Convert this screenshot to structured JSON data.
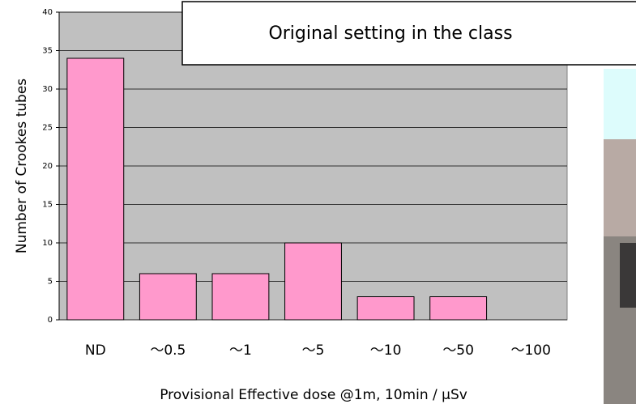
{
  "chart_data": {
    "type": "bar",
    "title": "Original setting in the class",
    "x_label": "Provisional Effective dose @1m, 10min / μSv",
    "y_label": "Number of Crookes tubes",
    "categories": [
      "ND",
      "～0.5",
      "～1",
      "～5",
      "～10",
      "～50",
      "～100"
    ],
    "values": [
      34,
      6,
      6,
      10,
      3,
      3,
      0
    ],
    "color": "#ff99cc",
    "ylim": [
      0,
      40
    ],
    "yticks": [
      0,
      5,
      10,
      15,
      20,
      25,
      30,
      35,
      40
    ],
    "grid": true
  }
}
